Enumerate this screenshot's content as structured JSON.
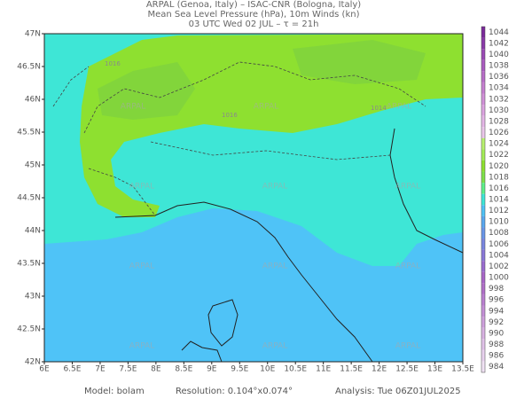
{
  "header": {
    "lines": [
      "ARPAL (Genoa, Italy)  –  ISAC-CNR (Bologna, Italy)",
      "Mean Sea Level Pressure (hPa), 10m Winds (kn)",
      "03 UTC Wed 02 JUL  –  τ = 21h"
    ]
  },
  "map": {
    "x_labels": [
      "6E",
      "6.5E",
      "7E",
      "7.5E",
      "8E",
      "8.5E",
      "9E",
      "9.5E",
      "10E",
      "10.5E",
      "11E",
      "11.5E",
      "12E",
      "12.5E",
      "13E",
      "13.5E"
    ],
    "y_labels": [
      "47N",
      "46.5N",
      "46N",
      "45.5N",
      "45N",
      "44.5N",
      "44N",
      "43.5N",
      "43N",
      "42.5N",
      "42N"
    ],
    "contour_labels": [
      "1016",
      "1014",
      "1016"
    ],
    "watermark": "ARPAL"
  },
  "colorbar": {
    "levels": [
      {
        "label": "1044",
        "color": "#7a2a9a"
      },
      {
        "label": "1042",
        "color": "#8a3aa8"
      },
      {
        "label": "1040",
        "color": "#9a4ab5"
      },
      {
        "label": "1038",
        "color": "#aa5cc0"
      },
      {
        "label": "1036",
        "color": "#b86ec8"
      },
      {
        "label": "1034",
        "color": "#c680d0"
      },
      {
        "label": "1032",
        "color": "#d292d8"
      },
      {
        "label": "1030",
        "color": "#dca4e0"
      },
      {
        "label": "1028",
        "color": "#e4b6e6"
      },
      {
        "label": "1026",
        "color": "#eac6ea"
      },
      {
        "label": "1024",
        "color": "#b8f070"
      },
      {
        "label": "1022",
        "color": "#a4ec58"
      },
      {
        "label": "1020",
        "color": "#8ee030"
      },
      {
        "label": "1018",
        "color": "#7ee04a"
      },
      {
        "label": "1016",
        "color": "#5ef08a"
      },
      {
        "label": "1014",
        "color": "#3ee6d6"
      },
      {
        "label": "1012",
        "color": "#4fc3f7"
      },
      {
        "label": "1010",
        "color": "#5aa8f0"
      },
      {
        "label": "1008",
        "color": "#6a96e8"
      },
      {
        "label": "1006",
        "color": "#7a86e0"
      },
      {
        "label": "1004",
        "color": "#8a78d8"
      },
      {
        "label": "1002",
        "color": "#9a6cd0"
      },
      {
        "label": "1000",
        "color": "#a866c8"
      },
      {
        "label": "998",
        "color": "#b070c8"
      },
      {
        "label": "996",
        "color": "#ba80d0"
      },
      {
        "label": "994",
        "color": "#c490d6"
      },
      {
        "label": "992",
        "color": "#cea0dc"
      },
      {
        "label": "990",
        "color": "#d8b2e2"
      },
      {
        "label": "988",
        "color": "#e0c2e8"
      },
      {
        "label": "986",
        "color": "#e8d2ee"
      },
      {
        "label": "984",
        "color": "#f0e2f4"
      }
    ]
  },
  "footer": {
    "model": "Model: bolam",
    "resolution": "Resolution: 0.104°x0.074°",
    "analysis": "Analysis: Tue 06Z01JUL2025"
  }
}
